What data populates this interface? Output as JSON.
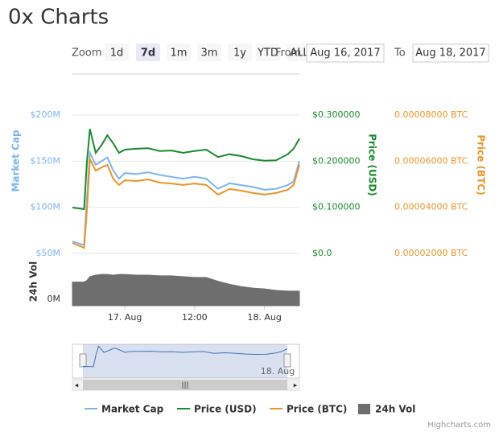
{
  "header": {
    "title": "0x Charts"
  },
  "range_selector": {
    "zoom_label": "Zoom",
    "buttons": [
      "1d",
      "7d",
      "1m",
      "3m",
      "1y",
      "YTD",
      "ALL"
    ],
    "selected": "7d",
    "from_label": "From",
    "from": "Aug 16, 2017",
    "to_label": "To",
    "to": "Aug 18, 2017"
  },
  "credits": "Highcharts.com",
  "chart_data": {
    "type": "line",
    "x": [
      "2017-08-16T15:00",
      "2017-08-16T17:00",
      "2017-08-16T17:30",
      "2017-08-16T18:00",
      "2017-08-16T19:00",
      "2017-08-16T20:00",
      "2017-08-16T21:00",
      "2017-08-16T22:00",
      "2017-08-16T23:00",
      "2017-08-17T00:00",
      "2017-08-17T02:00",
      "2017-08-17T04:00",
      "2017-08-17T06:00",
      "2017-08-17T08:00",
      "2017-08-17T10:00",
      "2017-08-17T12:00",
      "2017-08-17T14:00",
      "2017-08-17T16:00",
      "2017-08-17T18:00",
      "2017-08-17T20:00",
      "2017-08-17T22:00",
      "2017-08-18T00:00",
      "2017-08-18T02:00",
      "2017-08-18T04:00",
      "2017-08-18T05:00",
      "2017-08-18T06:00"
    ],
    "xlim": [
      "2017-08-16T15:00",
      "2017-08-18T06:00"
    ],
    "xticks": [
      {
        "value": "2017-08-17T00:00",
        "label": "17. Aug"
      },
      {
        "value": "2017-08-17T12:00",
        "label": "12:00"
      },
      {
        "value": "2017-08-18T00:00",
        "label": "18. Aug"
      }
    ],
    "ylabel": "Market Cap",
    "ylim": [
      50000000,
      200000000
    ],
    "yticks": [
      {
        "value": 50000000,
        "label": "$50M"
      },
      {
        "value": 100000000,
        "label": "$100M"
      },
      {
        "value": 150000000,
        "label": "$150M"
      },
      {
        "value": 200000000,
        "label": "$200M"
      }
    ],
    "y2label": "Price (USD)",
    "y2lim": [
      0,
      0.3
    ],
    "y2ticks": [
      {
        "value": 0,
        "label": "$0.0"
      },
      {
        "value": 0.1,
        "label": "$0.100000"
      },
      {
        "value": 0.2,
        "label": "$0.200000"
      },
      {
        "value": 0.3,
        "label": "$0.300000"
      }
    ],
    "y3label": "Price (BTC)",
    "y3lim": [
      2e-05,
      8e-05
    ],
    "y3ticks": [
      {
        "value": 2e-05,
        "label": "0.00002000 BTC"
      },
      {
        "value": 4e-05,
        "label": "0.00004000 BTC"
      },
      {
        "value": 6e-05,
        "label": "0.00006000 BTC"
      },
      {
        "value": 8e-05,
        "label": "0.00008000 BTC"
      }
    ],
    "y4label": "24h Vol",
    "y4lim": [
      0,
      60000000
    ],
    "y4ticks": [
      {
        "value": 0,
        "label": "0M"
      }
    ],
    "grid": true,
    "series": [
      {
        "name": "Market Cap",
        "color": "#7cb5ec",
        "axis": "y",
        "type": "line",
        "values": [
          63000000,
          59000000,
          111000000,
          159000000,
          146000000,
          150000000,
          154000000,
          140000000,
          131000000,
          137000000,
          136000000,
          138000000,
          135000000,
          133000000,
          131000000,
          133000000,
          131000000,
          120000000,
          126000000,
          124000000,
          122000000,
          119000000,
          120000000,
          124000000,
          128000000,
          150000000
        ]
      },
      {
        "name": "Price (USD)",
        "color": "#1a8a2e",
        "axis": "y2",
        "type": "line",
        "values": [
          0.0994,
          0.096,
          0.2006,
          0.27,
          0.218,
          0.235,
          0.256,
          0.239,
          0.218,
          0.225,
          0.227,
          0.228,
          0.222,
          0.223,
          0.218,
          0.222,
          0.225,
          0.209,
          0.215,
          0.211,
          0.204,
          0.201,
          0.202,
          0.215,
          0.227,
          0.249
        ]
      },
      {
        "name": "Price (BTC)",
        "color": "#e8952a",
        "axis": "y3",
        "type": "line",
        "values": [
          2.45e-05,
          2.24e-05,
          3.92e-05,
          6.08e-05,
          5.59e-05,
          5.73e-05,
          5.84e-05,
          5.24e-05,
          4.97e-05,
          5.17e-05,
          5.14e-05,
          5.21e-05,
          5.07e-05,
          5.03e-05,
          4.97e-05,
          5.03e-05,
          4.97e-05,
          4.55e-05,
          4.79e-05,
          4.72e-05,
          4.62e-05,
          4.55e-05,
          4.62e-05,
          4.76e-05,
          4.97e-05,
          5.84e-05
        ]
      },
      {
        "name": "24h Vol",
        "color": "#6e6e6e",
        "axis": "y4",
        "type": "area",
        "values": [
          31000000,
          31000000,
          33000000,
          38000000,
          40000000,
          41000000,
          41000000,
          40000000,
          41000000,
          41000000,
          40000000,
          40000000,
          39000000,
          39000000,
          38000000,
          37000000,
          37000000,
          32000000,
          28000000,
          25000000,
          23000000,
          22000000,
          20000000,
          19000000,
          19000000,
          19000000
        ]
      }
    ]
  }
}
